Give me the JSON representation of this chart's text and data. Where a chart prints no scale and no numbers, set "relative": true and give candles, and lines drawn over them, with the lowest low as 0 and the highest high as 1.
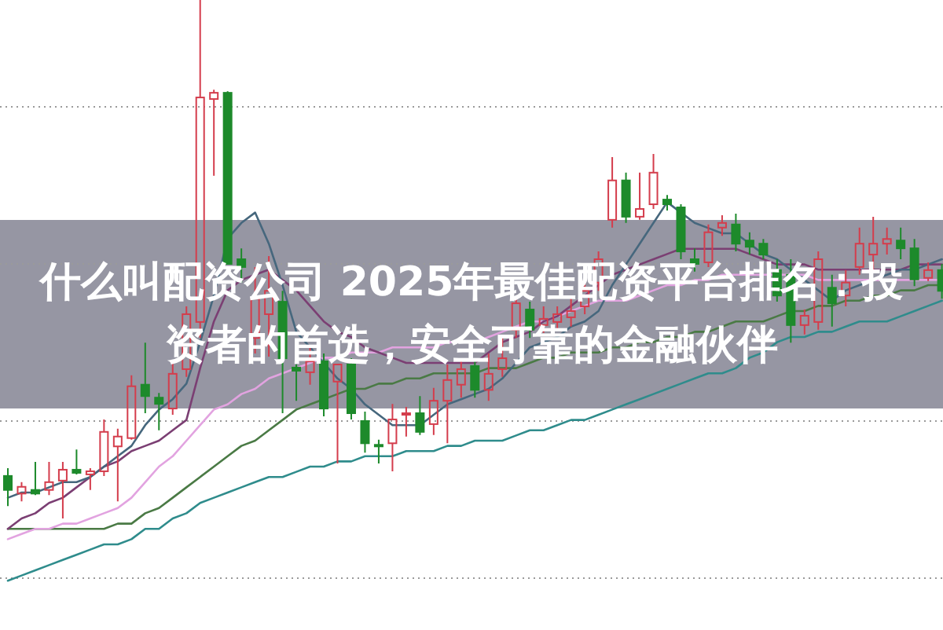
{
  "chart_data": {
    "type": "candlestick",
    "title": "什么叫配资公司 2025年最佳配资平台排名：投资者的首选，安全可靠的金融伙伴",
    "relative": true,
    "grid": "y",
    "categories": [
      null,
      null,
      null,
      null,
      null,
      null,
      null,
      null,
      null,
      null,
      null,
      null,
      null,
      null,
      null,
      null,
      null,
      null,
      null,
      null,
      null,
      null,
      null,
      null,
      null,
      null,
      null,
      null,
      null,
      null,
      null,
      null,
      null,
      null,
      null,
      null,
      null,
      null,
      null,
      null,
      null,
      null,
      null,
      null,
      null,
      null,
      null,
      null,
      null,
      null,
      null,
      null,
      null,
      null,
      null,
      null,
      null,
      null,
      null,
      null,
      null,
      null,
      null,
      null,
      null,
      null,
      null,
      null,
      null
    ],
    "ohlc": [
      [
        0.082,
        0.097,
        0.024,
        0.055
      ],
      [
        0.048,
        0.07,
        0.033,
        0.061
      ],
      [
        0.055,
        0.109,
        0.045,
        0.048
      ],
      [
        0.055,
        0.109,
        0.045,
        0.07
      ],
      [
        0.073,
        0.109,
        0,
        0.094
      ],
      [
        0.094,
        0.133,
        0.085,
        0.088
      ],
      [
        0.085,
        0.097,
        0.055,
        0.091
      ],
      [
        0.091,
        0.191,
        0.082,
        0.167
      ],
      [
        0.139,
        0.173,
        0.033,
        0.158
      ],
      [
        0.155,
        0.276,
        0.152,
        0.255
      ],
      [
        0.258,
        0.339,
        0.203,
        0.236
      ],
      [
        0.233,
        0.242,
        0.17,
        0.221
      ],
      [
        0.212,
        0.303,
        0.2,
        0.279
      ],
      [
        0.288,
        0.409,
        0.273,
        0.394
      ],
      [
        0.379,
        1,
        0.348,
        0.812
      ],
      [
        0.809,
        0.827,
        0.661,
        0.821
      ],
      [
        0.821,
        0.824,
        0.491,
        0.491
      ],
      [
        0.5,
        0.521,
        0.455,
        0.485
      ],
      [
        0.348,
        0.485,
        0.318,
        0.424
      ],
      [
        0.394,
        0.506,
        0.312,
        0.439
      ],
      [
        0.418,
        0.439,
        0.203,
        0.309
      ],
      [
        0.291,
        0.297,
        0.227,
        0.285
      ],
      [
        0.282,
        0.333,
        0.258,
        0.303
      ],
      [
        0.303,
        0.318,
        0.197,
        0.212
      ],
      [
        0.264,
        0.297,
        0.106,
        0.297
      ],
      [
        0.297,
        0.309,
        0.191,
        0.203
      ],
      [
        0.188,
        0.206,
        0.127,
        0.145
      ],
      [
        0.142,
        0.152,
        0.106,
        0.139
      ],
      [
        0.145,
        0.221,
        0.091,
        0.191
      ],
      [
        0.2,
        0.215,
        0.158,
        0.203
      ],
      [
        0.203,
        0.236,
        0.161,
        0.167
      ],
      [
        0.182,
        0.252,
        0.161,
        0.227
      ],
      [
        0.227,
        0.297,
        0.145,
        0.267
      ],
      [
        0.258,
        0.309,
        0.233,
        0.288
      ],
      [
        0.294,
        0.303,
        0.233,
        0.248
      ],
      [
        0.248,
        0.318,
        0.227,
        0.279
      ],
      [
        0.288,
        0.348,
        0.273,
        0.309
      ],
      [
        0.364,
        0.424,
        0.348,
        0.415
      ],
      [
        0.403,
        0.418,
        0.348,
        0.364
      ],
      [
        0.373,
        0.409,
        0.358,
        0.385
      ],
      [
        0.379,
        0.409,
        0.364,
        0.394
      ],
      [
        0.388,
        0.424,
        0.37,
        0.4
      ],
      [
        0.409,
        0.455,
        0.394,
        0.439
      ],
      [
        0.455,
        0.515,
        0.439,
        0.5
      ],
      [
        0.576,
        0.697,
        0.561,
        0.652
      ],
      [
        0.652,
        0.667,
        0.57,
        0.582
      ],
      [
        0.582,
        0.667,
        0.576,
        0.597
      ],
      [
        0.606,
        0.703,
        0.597,
        0.667
      ],
      [
        0.615,
        0.624,
        0.594,
        0.606
      ],
      [
        0.6,
        0.606,
        0.5,
        0.515
      ],
      [
        0.5,
        0.521,
        0.476,
        0.491
      ],
      [
        0.494,
        0.567,
        0.485,
        0.552
      ],
      [
        0.561,
        0.585,
        0.545,
        0.57
      ],
      [
        0.567,
        0.588,
        0.515,
        0.53
      ],
      [
        0.536,
        0.552,
        0.509,
        0.524
      ],
      [
        0.53,
        0.539,
        0.5,
        0.509
      ],
      [
        0.479,
        0.5,
        0.418,
        0.43
      ],
      [
        0.47,
        0.5,
        0.339,
        0.373
      ],
      [
        0.373,
        0.403,
        0.355,
        0.391
      ],
      [
        0.379,
        0.515,
        0.364,
        0.5
      ],
      [
        0.445,
        0.47,
        0.37,
        0.415
      ],
      [
        0.43,
        0.479,
        0.409,
        0.455
      ],
      [
        0.485,
        0.561,
        0.47,
        0.53
      ],
      [
        0.509,
        0.582,
        0.479,
        0.53
      ],
      [
        0.53,
        0.561,
        0.509,
        0.539
      ],
      [
        0.536,
        0.561,
        0.5,
        0.521
      ],
      [
        0.521,
        0.539,
        0.448,
        0.461
      ],
      [
        0.464,
        0.494,
        0.458,
        0.479
      ],
      [
        0.479,
        0.491,
        0.424,
        0.439
      ]
    ],
    "series": [
      {
        "type": "line",
        "color": "#2f8c8c",
        "values": [
          -0.12,
          -0.11,
          -0.1,
          -0.09,
          -0.08,
          -0.07,
          -0.06,
          -0.05,
          -0.05,
          -0.04,
          -0.02,
          -0.02,
          0.0,
          0.01,
          0.03,
          0.04,
          0.05,
          0.06,
          0.07,
          0.08,
          0.08,
          0.09,
          0.1,
          0.1,
          0.11,
          0.11,
          0.12,
          0.12,
          0.12,
          0.13,
          0.13,
          0.13,
          0.14,
          0.14,
          0.15,
          0.15,
          0.15,
          0.16,
          0.17,
          0.17,
          0.18,
          0.19,
          0.19,
          0.2,
          0.21,
          0.22,
          0.23,
          0.24,
          0.25,
          0.26,
          0.27,
          0.28,
          0.28,
          0.29,
          0.31,
          0.32,
          0.34,
          0.35,
          0.35,
          0.36,
          0.36,
          0.37,
          0.38,
          0.38,
          0.38,
          0.39,
          0.4,
          0.41,
          0.42
        ]
      },
      {
        "type": "line",
        "color": "#4a7a45",
        "values": [
          -0.02,
          -0.02,
          -0.02,
          -0.02,
          -0.02,
          -0.02,
          -0.02,
          -0.02,
          -0.01,
          -0.01,
          0.01,
          0.02,
          0.04,
          0.06,
          0.08,
          0.1,
          0.12,
          0.14,
          0.15,
          0.17,
          0.19,
          0.21,
          0.22,
          0.23,
          0.24,
          0.25,
          0.25,
          0.26,
          0.26,
          0.27,
          0.27,
          0.28,
          0.28,
          0.28,
          0.28,
          0.29,
          0.29,
          0.29,
          0.3,
          0.31,
          0.31,
          0.32,
          0.32,
          0.32,
          0.33,
          0.33,
          0.34,
          0.34,
          0.35,
          0.35,
          0.36,
          0.36,
          0.37,
          0.38,
          0.38,
          0.38,
          0.39,
          0.4,
          0.4,
          0.41,
          0.41,
          0.42,
          0.42,
          0.43,
          0.43,
          0.44,
          0.44,
          0.45,
          0.45
        ]
      },
      {
        "type": "line",
        "color": "#e2a3e0",
        "values": [
          -0.04,
          -0.03,
          -0.02,
          -0.02,
          -0.01,
          -0.01,
          0,
          0.01,
          0.02,
          0.04,
          0.07,
          0.1,
          0.12,
          0.15,
          0.18,
          0.21,
          0.22,
          0.24,
          0.25,
          0.27,
          0.28,
          0.29,
          0.3,
          0.31,
          0.31,
          0.32,
          0.32,
          0.32,
          0.33,
          0.33,
          0.33,
          0.33,
          0.34,
          0.34,
          0.34,
          0.35,
          0.36,
          0.37,
          0.38,
          0.38,
          0.39,
          0.4,
          0.41,
          0.42,
          0.42,
          0.42,
          0.43,
          0.44,
          0.45,
          0.45,
          0.46,
          0.46,
          0.47,
          0.47,
          0.47,
          0.47,
          0.47,
          0.47,
          0.47,
          0.46,
          0.46,
          0.46,
          0.46,
          0.46,
          0.46,
          0.46,
          0.46,
          0.46,
          0.46
        ]
      },
      {
        "type": "line",
        "color": "#7b3f73",
        "values": [
          -0.02,
          0,
          0.01,
          0.03,
          0.04,
          0.06,
          0.08,
          0.1,
          0.11,
          0.13,
          0.14,
          0.15,
          0.17,
          0.19,
          0.29,
          0.38,
          0.44,
          0.46,
          0.47,
          0.48,
          0.46,
          0.44,
          0.41,
          0.38,
          0.36,
          0.35,
          0.33,
          0.32,
          0.31,
          0.3,
          0.3,
          0.3,
          0.3,
          0.3,
          0.3,
          0.32,
          0.34,
          0.35,
          0.36,
          0.38,
          0.39,
          0.41,
          0.43,
          0.45,
          0.47,
          0.48,
          0.49,
          0.5,
          0.51,
          0.52,
          0.52,
          0.52,
          0.52,
          0.52,
          0.51,
          0.5,
          0.49,
          0.49,
          0.49,
          0.48,
          0.48,
          0.48,
          0.48,
          0.48,
          0.48,
          0.48,
          0.49,
          0.49,
          0.49
        ]
      },
      {
        "type": "line",
        "color": "#46677d",
        "values": [
          0.04,
          0.05,
          0.05,
          0.06,
          0.07,
          0.07,
          0.08,
          0.1,
          0.12,
          0.14,
          0.18,
          0.21,
          0.23,
          0.26,
          0.34,
          0.43,
          0.54,
          0.57,
          0.59,
          0.53,
          0.45,
          0.36,
          0.33,
          0.3,
          0.27,
          0.25,
          0.22,
          0.2,
          0.18,
          0.18,
          0.18,
          0.2,
          0.22,
          0.23,
          0.24,
          0.25,
          0.27,
          0.3,
          0.33,
          0.34,
          0.35,
          0.37,
          0.38,
          0.4,
          0.45,
          0.49,
          0.53,
          0.57,
          0.61,
          0.59,
          0.57,
          0.56,
          0.55,
          0.55,
          0.53,
          0.51,
          0.5,
          0.48,
          0.46,
          0.44,
          0.42,
          0.44,
          0.45,
          0.46,
          0.47,
          0.48,
          0.48,
          0.49,
          0.5
        ]
      }
    ]
  }
}
